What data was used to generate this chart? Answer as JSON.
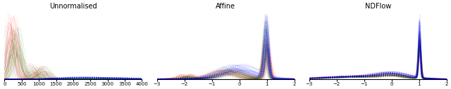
{
  "title1": "Unnormalised",
  "title2": "Affine",
  "title3": "NDFlow",
  "xlim1": [
    0,
    4000
  ],
  "xlim2": [
    -3,
    2
  ],
  "xlim3": [
    -3,
    2
  ],
  "xticks1": [
    0,
    500,
    1000,
    1500,
    2000,
    2500,
    3000,
    3500,
    4000
  ],
  "xticks2": [
    -3,
    -2,
    -1,
    0,
    1,
    2
  ],
  "xticks3": [
    -3,
    -2,
    -1,
    0,
    1,
    2
  ],
  "background": "#ffffff",
  "figsize": [
    6.4,
    1.27
  ],
  "dpi": 100,
  "n_curves": 50,
  "alpha": 0.25,
  "lw": 0.4
}
